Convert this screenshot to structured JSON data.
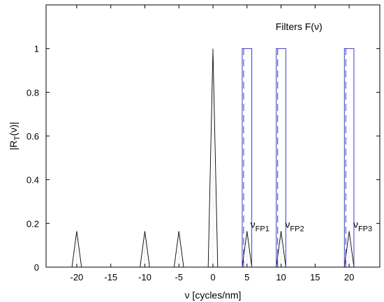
{
  "chart_data": {
    "type": "line",
    "title": "",
    "xlabel": "ν [cycles/nm]",
    "ylabel_main": "|R",
    "ylabel_sub": "T",
    "ylabel_tail": "(ν)|",
    "xlim": [
      -24.5,
      24.5
    ],
    "ylim": [
      0,
      1.2
    ],
    "xticks": [
      -20,
      -15,
      -10,
      -5,
      0,
      5,
      10,
      15,
      20
    ],
    "yticks": [
      0,
      0.2,
      0.4,
      0.6,
      0.8,
      1
    ],
    "xtick_labels": [
      "-20",
      "-15",
      "-10",
      "-5",
      "0",
      "5",
      "10",
      "15",
      "20"
    ],
    "ytick_labels": [
      "0",
      "0.2",
      "0.4",
      "0.6",
      "0.8",
      "1"
    ],
    "grid": false,
    "series": [
      {
        "role": "spectrum",
        "color": "#000000",
        "peaks": [
          {
            "x": -20,
            "y": 0.165
          },
          {
            "x": -10,
            "y": 0.165
          },
          {
            "x": -5,
            "y": 0.165
          },
          {
            "x": 0,
            "y": 1.0
          },
          {
            "x": 5,
            "y": 0.165
          },
          {
            "x": 10,
            "y": 0.165
          },
          {
            "x": 20,
            "y": 0.165
          }
        ],
        "peak_halfwidth": 0.7
      },
      {
        "role": "filters",
        "name": "Filters F(ν)",
        "color": "#3c3cc8",
        "passbands": [
          {
            "from": 4.3,
            "to": 5.7,
            "y": 1.0
          },
          {
            "from": 9.3,
            "to": 10.7,
            "y": 1.0
          },
          {
            "from": 19.3,
            "to": 20.7,
            "y": 1.0
          }
        ]
      }
    ],
    "annotations": [
      {
        "main": "Filters F(ν)",
        "sub": "",
        "x": 9.2,
        "y": 1.085
      },
      {
        "main": "ν",
        "sub": "FP1",
        "x": 5.5,
        "y": 0.18
      },
      {
        "main": "ν",
        "sub": "FP2",
        "x": 10.6,
        "y": 0.18
      },
      {
        "main": "ν",
        "sub": "FP3",
        "x": 20.6,
        "y": 0.18
      }
    ]
  }
}
